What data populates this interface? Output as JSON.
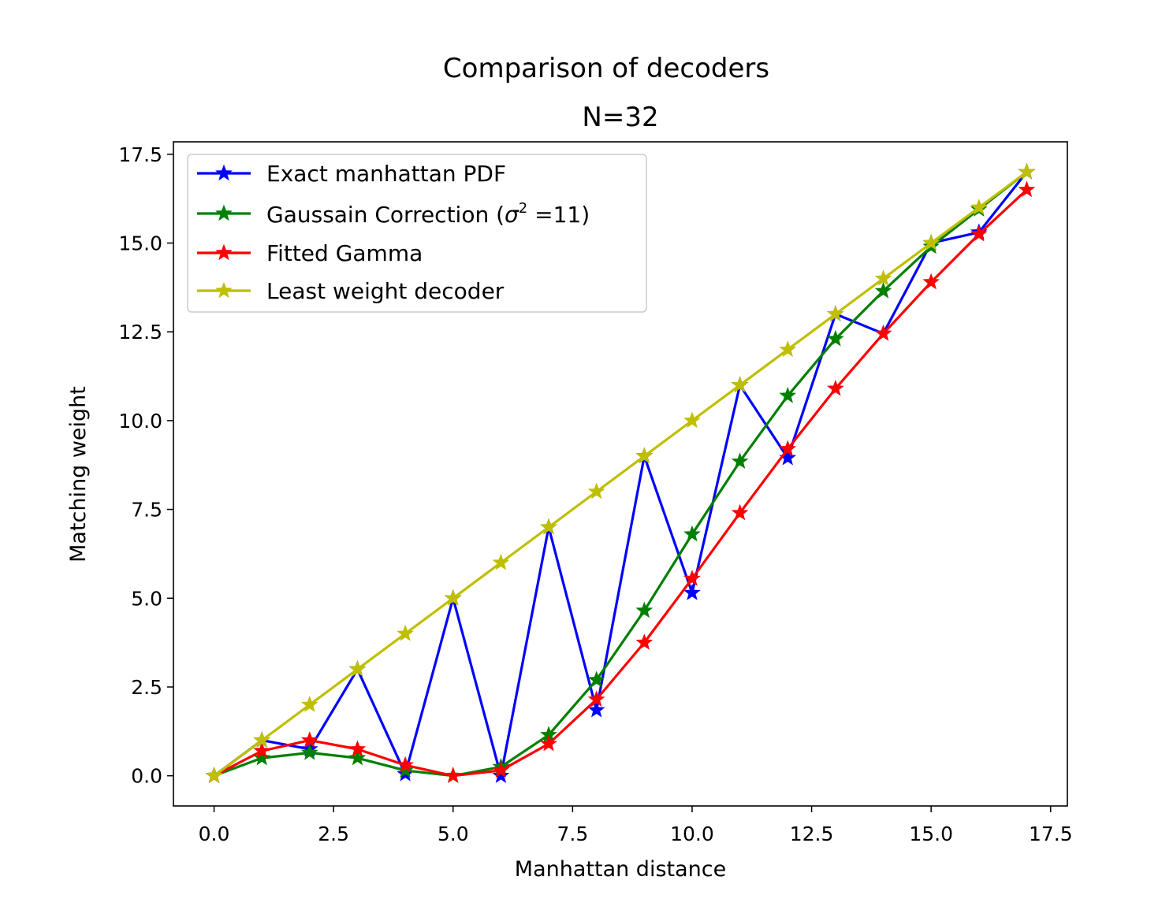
{
  "chart_data": {
    "type": "line",
    "title": "Comparison of decoders",
    "subtitle": "N=32",
    "xlabel": "Manhattan distance",
    "ylabel": "Matching weight",
    "xlim": [
      -0.85,
      17.85
    ],
    "ylim": [
      -0.85,
      17.85
    ],
    "xticks": [
      "0.0",
      "2.5",
      "5.0",
      "7.5",
      "10.0",
      "12.5",
      "15.0",
      "17.5"
    ],
    "yticks": [
      "0.0",
      "2.5",
      "5.0",
      "7.5",
      "10.0",
      "12.5",
      "15.0",
      "17.5"
    ],
    "grid": false,
    "legend_position": "top-left",
    "x": [
      0,
      1,
      2,
      3,
      4,
      5,
      6,
      7,
      8,
      9,
      10,
      11,
      12,
      13,
      14,
      15,
      16,
      17
    ],
    "series": [
      {
        "name": "Exact manhattan PDF",
        "color": "#0000ff",
        "marker": "star",
        "values": [
          0,
          1.0,
          0.75,
          3.0,
          0.05,
          5.0,
          0.0,
          7.0,
          1.85,
          9.0,
          5.15,
          11.0,
          8.95,
          13.0,
          12.45,
          15.0,
          15.3,
          17.0
        ]
      },
      {
        "name_main": "Gaussain Correction (",
        "name_sigma": "σ",
        "name_sup": "2",
        "name_rest": " =11)",
        "color": "#008000",
        "marker": "star",
        "values": [
          0,
          0.5,
          0.65,
          0.5,
          0.15,
          0.0,
          0.25,
          1.15,
          2.7,
          4.65,
          6.8,
          8.85,
          10.7,
          12.3,
          13.65,
          14.9,
          15.95,
          17.0
        ]
      },
      {
        "name": "Fitted Gamma",
        "color": "#ff0000",
        "marker": "star",
        "values": [
          0,
          0.7,
          1.0,
          0.75,
          0.3,
          0.0,
          0.15,
          0.9,
          2.15,
          3.75,
          5.55,
          7.4,
          9.2,
          10.9,
          12.45,
          13.9,
          15.25,
          16.5
        ]
      },
      {
        "name": "Least weight decoder",
        "color": "#bfbf00",
        "marker": "star",
        "values": [
          0,
          1,
          2,
          3,
          4,
          5,
          6,
          7,
          8,
          9,
          10,
          11,
          12,
          13,
          14,
          15,
          16,
          17
        ]
      }
    ]
  }
}
